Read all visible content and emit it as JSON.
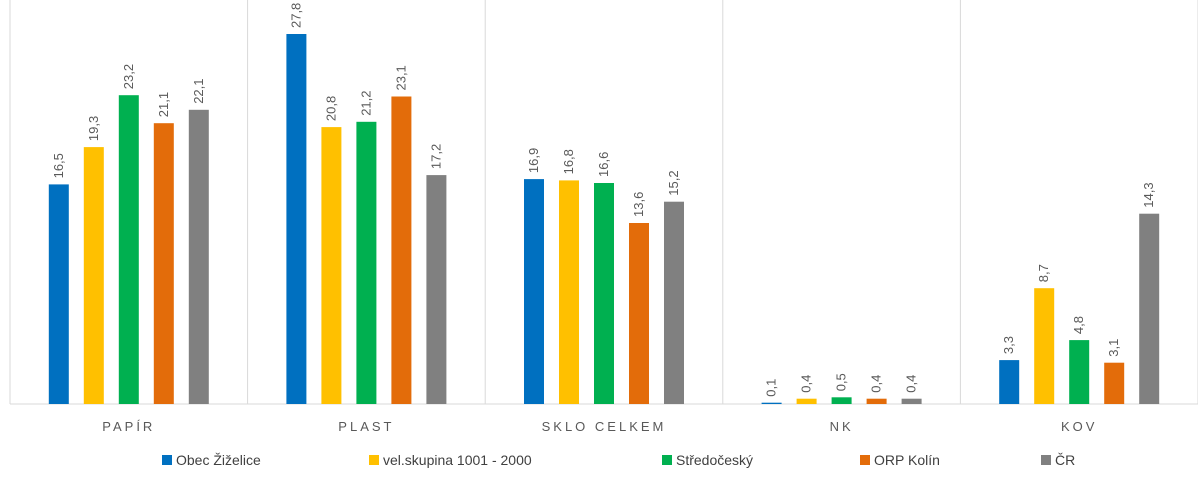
{
  "chart_data": {
    "type": "bar",
    "title": "",
    "xlabel": "",
    "ylabel": "",
    "ylim": [
      0,
      29
    ],
    "grid": false,
    "legend_position": "bottom",
    "categories": [
      "PAPÍR",
      "PLAST",
      "SKLO CELKEM",
      "NK",
      "KOV"
    ],
    "series": [
      {
        "name": "Obec Žiželice",
        "color": "#0070C0",
        "values": [
          16.5,
          27.8,
          16.9,
          0.1,
          3.3
        ],
        "labels": [
          "16,5",
          "27,8",
          "16,9",
          "0,1",
          "3,3"
        ]
      },
      {
        "name": "vel.skupina 1001 - 2000",
        "color": "#FFC000",
        "values": [
          19.3,
          20.8,
          16.8,
          0.4,
          8.7
        ],
        "labels": [
          "19,3",
          "20,8",
          "16,8",
          "0,4",
          "8,7"
        ]
      },
      {
        "name": "Středočeský",
        "color": "#00B050",
        "values": [
          23.2,
          21.2,
          16.6,
          0.5,
          4.8
        ],
        "labels": [
          "23,2",
          "21,2",
          "16,6",
          "0,5",
          "4,8"
        ]
      },
      {
        "name": "ORP Kolín",
        "color": "#E36C0A",
        "values": [
          21.1,
          23.1,
          13.6,
          0.4,
          3.1
        ],
        "labels": [
          "21,1",
          "23,1",
          "13,6",
          "0,4",
          "3,1"
        ]
      },
      {
        "name": "ČR",
        "color": "#808080",
        "values": [
          22.1,
          17.2,
          15.2,
          0.4,
          14.3
        ],
        "labels": [
          "22,1",
          "17,2",
          "15,2",
          "0,4",
          "14,3"
        ]
      }
    ]
  }
}
